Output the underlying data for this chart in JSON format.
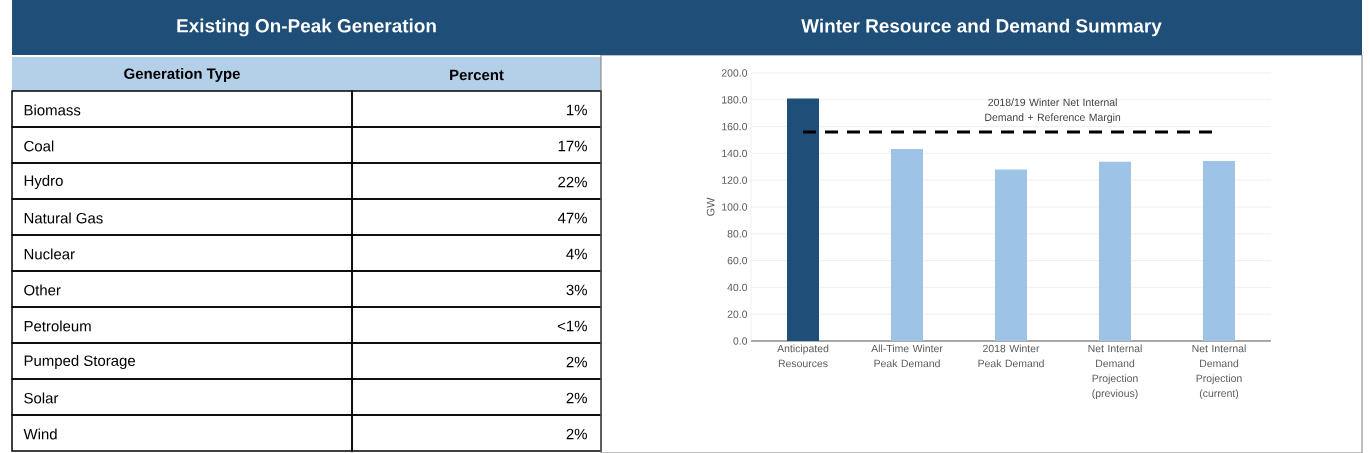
{
  "chart_data": [
    {
      "type": "other",
      "title": "Existing On-Peak Generation",
      "xlabel": "Generation Type",
      "ylabel": "Percent",
      "categories": [
        "Biomass",
        "Coal",
        "Hydro",
        "Natural Gas",
        "Nuclear",
        "Other",
        "Petroleum",
        "Pumped Storage",
        "Solar",
        "Wind"
      ],
      "value_labels": [
        "1%",
        "17%",
        "22%",
        "47%",
        "4%",
        "3%",
        "<1%",
        "2%",
        "2%",
        "2%"
      ]
    },
    {
      "type": "bar",
      "title": "Winter Resource and Demand Summary",
      "ylabel": "GW",
      "categories": [
        "Anticipated Resources",
        "All-Time Winter Peak Demand",
        "2018 Winter Peak Demand",
        "Net Internal Demand Projection (previous)",
        "Net Internal Demand Projection (current)"
      ],
      "values": [
        181,
        143.3,
        128,
        133.8,
        134.4
      ],
      "colors": [
        "#1f4e79",
        "#9dc3e6",
        "#9dc3e6",
        "#9dc3e6",
        "#9dc3e6"
      ],
      "ylim": [
        0,
        200
      ],
      "yticks": [
        {
          "value": 0,
          "label": "0.0"
        },
        {
          "value": 20,
          "label": "20.0"
        },
        {
          "value": 40,
          "label": "40.0"
        },
        {
          "value": 60,
          "label": "60.0"
        },
        {
          "value": 80,
          "label": "80.0"
        },
        {
          "value": 100,
          "label": "100.0"
        },
        {
          "value": 120,
          "label": "120.0"
        },
        {
          "value": 140,
          "label": "140.0"
        },
        {
          "value": 160,
          "label": "160.0"
        },
        {
          "value": 180,
          "label": "180.0"
        },
        {
          "value": 200,
          "label": "200.0"
        }
      ],
      "grid": "y",
      "ref_lines": [
        {
          "axis": "y",
          "value": 156,
          "label": "2018/19 Winter Net Internal Demand + Reference Margin",
          "color": "#000000",
          "line_style": "dashed"
        }
      ]
    }
  ]
}
